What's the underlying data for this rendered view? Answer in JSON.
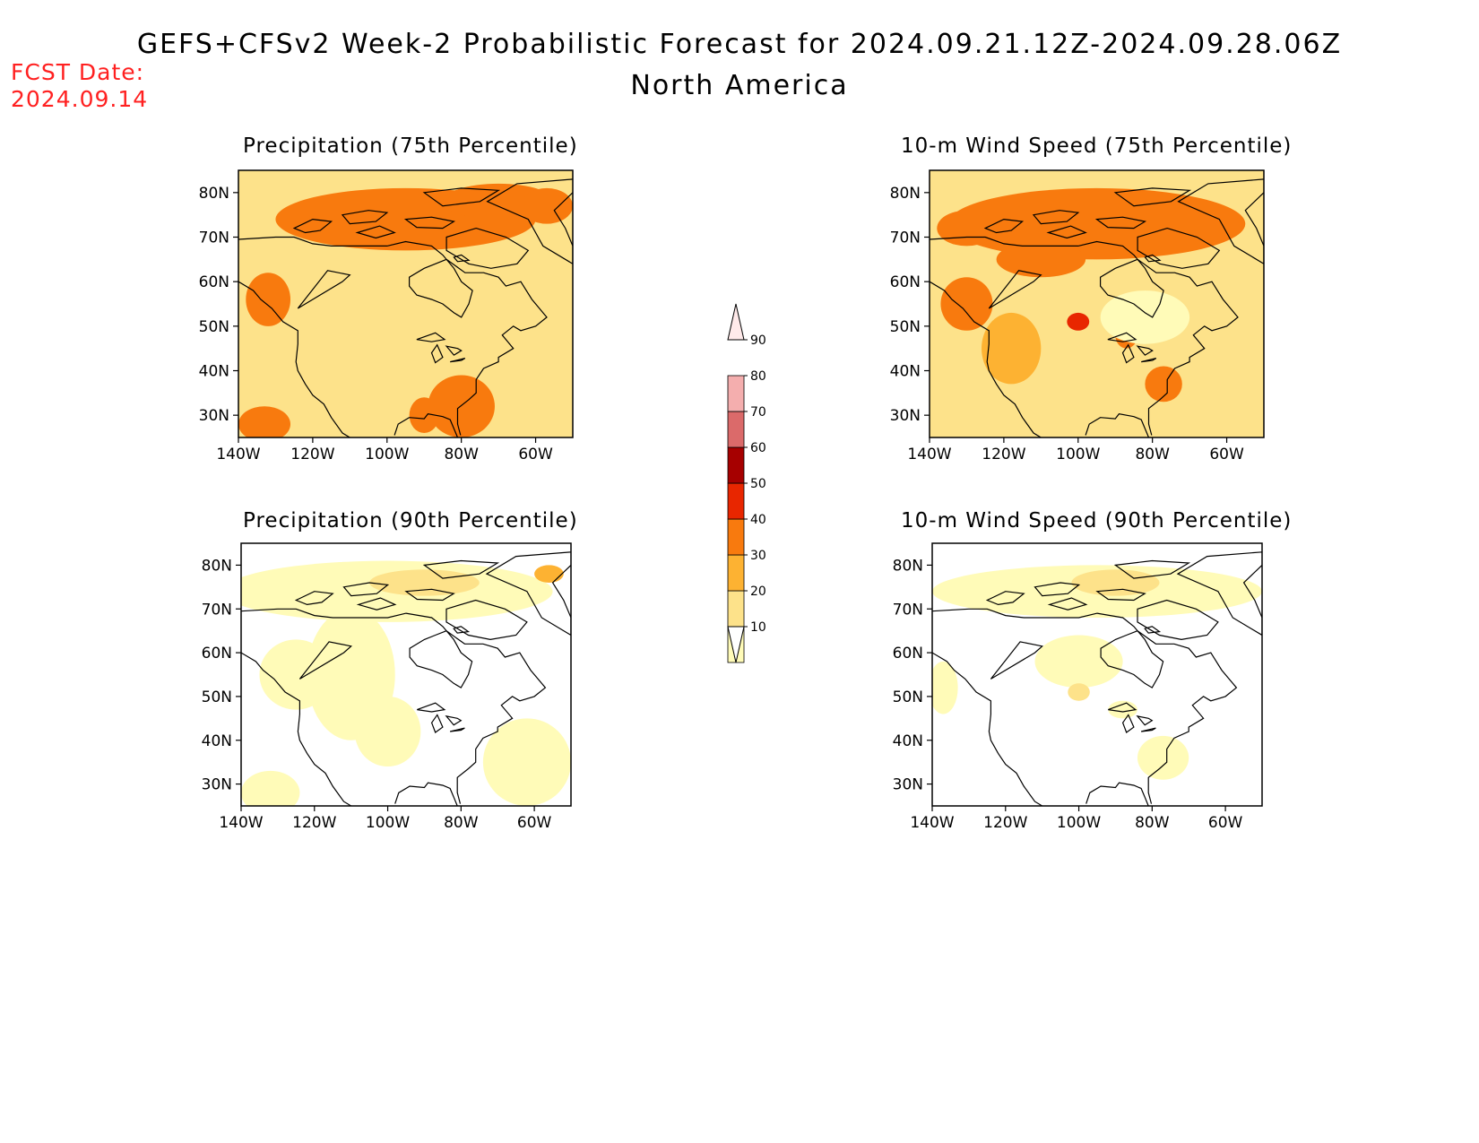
{
  "header": {
    "title": "GEFS+CFSv2 Week-2 Probabilistic Forecast for 2024.09.21.12Z-2024.09.28.06Z",
    "subtitle": "North America",
    "fcst_label": "FCST Date:",
    "fcst_date": "2024.09.14"
  },
  "axes": {
    "lat_ticks": [
      "80N",
      "70N",
      "60N",
      "50N",
      "40N",
      "30N"
    ],
    "lon_ticks": [
      "140W",
      "120W",
      "100W",
      "80W",
      "60W"
    ]
  },
  "colorbar": {
    "levels": [
      "10",
      "20",
      "30",
      "40",
      "50",
      "60",
      "70",
      "80",
      "90"
    ],
    "colors": [
      "#fffbb8",
      "#fde28a",
      "#fdb232",
      "#f87a0e",
      "#e82600",
      "#a60000",
      "#db6a6a",
      "#f4aeae",
      "#ffeaea"
    ]
  },
  "panels": [
    {
      "title": "Precipitation (75th Percentile)",
      "base": "#fde28a",
      "blobs": [
        {
          "lon": -95,
          "lat": 74,
          "rx": 35,
          "ry": 7,
          "level": 3
        },
        {
          "lon": -70,
          "lat": 78,
          "rx": 15,
          "ry": 4,
          "level": 3
        },
        {
          "lon": -57,
          "lat": 77,
          "rx": 7,
          "ry": 4,
          "level": 3
        },
        {
          "lon": -132,
          "lat": 56,
          "rx": 6,
          "ry": 6,
          "level": 3
        },
        {
          "lon": -133,
          "lat": 28,
          "rx": 7,
          "ry": 4,
          "level": 3
        },
        {
          "lon": -80,
          "lat": 32,
          "rx": 9,
          "ry": 7,
          "level": 3
        },
        {
          "lon": -90,
          "lat": 30,
          "rx": 4,
          "ry": 4,
          "level": 3
        },
        {
          "lon": -115,
          "lat": 35,
          "rx": 5,
          "ry": 8,
          "level": 1
        },
        {
          "lon": -70,
          "lat": 55,
          "rx": 9,
          "ry": 8,
          "level": 1
        },
        {
          "lon": -125,
          "lat": 45,
          "rx": 5,
          "ry": 4,
          "level": 1
        },
        {
          "lon": -90,
          "lat": 60,
          "rx": 10,
          "ry": 6,
          "level": 1
        }
      ]
    },
    {
      "title": "10-m Wind Speed (75th Percentile)",
      "base": "#fde28a",
      "blobs": [
        {
          "lon": -95,
          "lat": 73,
          "rx": 40,
          "ry": 8,
          "level": 3
        },
        {
          "lon": -110,
          "lat": 65,
          "rx": 12,
          "ry": 4,
          "level": 3
        },
        {
          "lon": -130,
          "lat": 72,
          "rx": 8,
          "ry": 4,
          "level": 3
        },
        {
          "lon": -100,
          "lat": 51,
          "rx": 3,
          "ry": 2,
          "level": 4
        },
        {
          "lon": -118,
          "lat": 45,
          "rx": 8,
          "ry": 8,
          "level": 2
        },
        {
          "lon": -77,
          "lat": 37,
          "rx": 5,
          "ry": 4,
          "level": 3
        },
        {
          "lon": -87,
          "lat": 48,
          "rx": 3,
          "ry": 3,
          "level": 3
        },
        {
          "lon": -130,
          "lat": 55,
          "rx": 7,
          "ry": 6,
          "level": 3
        },
        {
          "lon": -110,
          "lat": 30,
          "rx": 6,
          "ry": 4,
          "level": 1
        },
        {
          "lon": -82,
          "lat": 52,
          "rx": 12,
          "ry": 6,
          "level": 0
        },
        {
          "lon": -95,
          "lat": 38,
          "rx": 8,
          "ry": 5,
          "level": 1
        }
      ]
    },
    {
      "title": "Precipitation (90th Percentile)",
      "base": "#ffffff",
      "blobs": [
        {
          "lon": -100,
          "lat": 74,
          "rx": 45,
          "ry": 7,
          "level": 0
        },
        {
          "lon": -110,
          "lat": 55,
          "rx": 12,
          "ry": 15,
          "level": 0
        },
        {
          "lon": -125,
          "lat": 55,
          "rx": 10,
          "ry": 8,
          "level": 0
        },
        {
          "lon": -100,
          "lat": 42,
          "rx": 9,
          "ry": 8,
          "level": 0
        },
        {
          "lon": -62,
          "lat": 35,
          "rx": 12,
          "ry": 10,
          "level": 0
        },
        {
          "lon": -132,
          "lat": 28,
          "rx": 8,
          "ry": 5,
          "level": 0
        },
        {
          "lon": -90,
          "lat": 76,
          "rx": 15,
          "ry": 3,
          "level": 1
        },
        {
          "lon": -56,
          "lat": 78,
          "rx": 4,
          "ry": 2,
          "level": 2
        }
      ]
    },
    {
      "title": "10-m Wind Speed (90th Percentile)",
      "base": "#ffffff",
      "blobs": [
        {
          "lon": -95,
          "lat": 74,
          "rx": 45,
          "ry": 6,
          "level": 0
        },
        {
          "lon": -100,
          "lat": 58,
          "rx": 12,
          "ry": 6,
          "level": 0
        },
        {
          "lon": -137,
          "lat": 52,
          "rx": 4,
          "ry": 6,
          "level": 0
        },
        {
          "lon": -77,
          "lat": 36,
          "rx": 7,
          "ry": 5,
          "level": 0
        },
        {
          "lon": -100,
          "lat": 51,
          "rx": 3,
          "ry": 2,
          "level": 1
        },
        {
          "lon": -88,
          "lat": 47,
          "rx": 4,
          "ry": 2,
          "level": 0
        },
        {
          "lon": -90,
          "lat": 76,
          "rx": 12,
          "ry": 3,
          "level": 1
        }
      ]
    }
  ]
}
